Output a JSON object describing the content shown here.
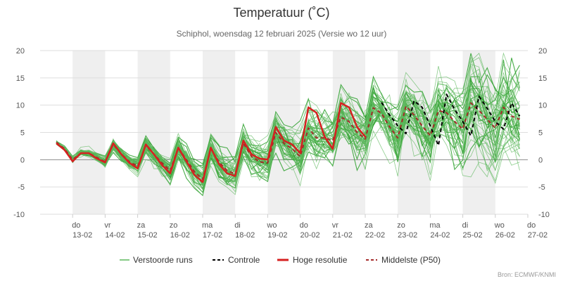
{
  "title": "Temperatuur (˚C)",
  "subtitle": "Schiphol, woensdag 12 februari 2025 (Versie wo 12 uur)",
  "source": "Bron: ECMWF/KNMI",
  "legend": {
    "ensemble": "Verstoorde runs",
    "control": "Controle",
    "hires": "Hoge resolutie",
    "median": "Middelste (P50)"
  },
  "colors": {
    "ensemble": "#2ca02c",
    "ensemble_light": "#5cb85c",
    "control": "#000000",
    "hires": "#d62020",
    "median": "#a52a2a",
    "band": "#efefef",
    "grid": "#dedede",
    "zero": "#8c8c8c"
  },
  "chart_data": {
    "type": "line",
    "title": "Temperatuur (˚C)",
    "subtitle": "Schiphol, woensdag 12 februari 2025 (Versie wo 12 uur)",
    "ylim": [
      -10,
      20
    ],
    "yticks": [
      -10,
      -5,
      0,
      5,
      10,
      15,
      20
    ],
    "x_unit": "days after 12-02 00:00",
    "xlim": [
      0,
      15
    ],
    "days": [
      {
        "dow": "do",
        "date": "13-02"
      },
      {
        "dow": "vr",
        "date": "14-02"
      },
      {
        "dow": "za",
        "date": "15-02"
      },
      {
        "dow": "zo",
        "date": "16-02"
      },
      {
        "dow": "ma",
        "date": "17-02"
      },
      {
        "dow": "di",
        "date": "18-02"
      },
      {
        "dow": "wo",
        "date": "19-02"
      },
      {
        "dow": "do",
        "date": "20-02"
      },
      {
        "dow": "vr",
        "date": "21-02"
      },
      {
        "dow": "za",
        "date": "22-02"
      },
      {
        "dow": "zo",
        "date": "23-02"
      },
      {
        "dow": "ma",
        "date": "24-02"
      },
      {
        "dow": "di",
        "date": "25-02"
      },
      {
        "dow": "wo",
        "date": "26-02"
      },
      {
        "dow": "do",
        "date": "27-02"
      }
    ],
    "grid": true,
    "legend_position": "bottom",
    "series": [
      {
        "name": "Controle",
        "style": "dashed",
        "x": [
          10.5,
          10.75,
          11,
          11.25,
          11.5,
          11.75,
          12,
          12.25,
          12.5,
          12.75,
          13,
          13.25,
          13.5,
          13.75,
          14,
          14.25,
          14.5,
          14.75
        ],
        "y": [
          10.5,
          8.2,
          6.2,
          4.8,
          10.8,
          9.6,
          6.2,
          2.6,
          12.0,
          9.2,
          7.0,
          4.4,
          11.6,
          9.4,
          7.0,
          5.6,
          10.4,
          8.0
        ]
      },
      {
        "name": "Hoge resolutie",
        "style": "solid",
        "x": [
          0.5,
          0.75,
          1,
          1.25,
          1.5,
          1.75,
          2,
          2.25,
          2.5,
          2.75,
          3,
          3.25,
          3.5,
          3.75,
          4,
          4.25,
          4.5,
          4.75,
          5,
          5.25,
          5.5,
          5.75,
          6,
          6.25,
          6.5,
          6.75,
          7,
          7.25,
          7.5,
          7.75,
          8,
          8.25,
          8.5,
          8.75,
          9,
          9.25,
          9.5,
          9.75,
          10
        ],
        "y": [
          3.0,
          1.8,
          -0.3,
          1.2,
          1.2,
          0.2,
          -0.5,
          3.0,
          1.0,
          -0.6,
          -1.6,
          2.8,
          1.0,
          -1.0,
          -2.5,
          2.2,
          -0.3,
          -2.8,
          -4.1,
          2.2,
          -0.8,
          -2.5,
          -3.0,
          3.5,
          1.0,
          0.2,
          0.0,
          6.0,
          3.5,
          2.8,
          1.2,
          9.6,
          8.6,
          4.2,
          2.0,
          10.4,
          9.6,
          6.0,
          4.2
        ]
      },
      {
        "name": "Middelste (P50)",
        "style": "dashed",
        "x": [
          0.5,
          0.75,
          1,
          1.25,
          1.5,
          1.75,
          2,
          2.25,
          2.5,
          2.75,
          3,
          3.25,
          3.5,
          3.75,
          4,
          4.25,
          4.5,
          4.75,
          5,
          5.25,
          5.5,
          5.75,
          6,
          6.25,
          6.5,
          6.75,
          7,
          7.25,
          7.5,
          7.75,
          8,
          8.25,
          8.5,
          8.75,
          9,
          9.25,
          9.5,
          9.75,
          10,
          10.25,
          10.5,
          10.75,
          11,
          11.25,
          11.5,
          11.75,
          12,
          12.25,
          12.5,
          12.75,
          13,
          13.25,
          13.5,
          13.75,
          14,
          14.25,
          14.5,
          14.75
        ],
        "y": [
          3.2,
          2.0,
          0.0,
          1.2,
          1.2,
          0.4,
          -0.4,
          2.8,
          1.0,
          -0.4,
          -1.2,
          2.6,
          1.0,
          -0.6,
          -2.0,
          2.2,
          0.0,
          -2.2,
          -3.6,
          2.0,
          -0.4,
          -2.0,
          -2.6,
          3.0,
          0.6,
          -0.4,
          -0.6,
          5.0,
          3.0,
          2.0,
          0.6,
          5.8,
          4.0,
          4.0,
          3.5,
          7.8,
          7.0,
          5.0,
          3.8,
          9.5,
          8.5,
          6.0,
          4.0,
          9.8,
          8.2,
          6.2,
          4.4,
          9.0,
          8.6,
          7.0,
          5.6,
          10.4,
          9.0,
          7.4,
          5.8,
          9.6,
          8.0,
          7.4
        ]
      }
    ]
  }
}
